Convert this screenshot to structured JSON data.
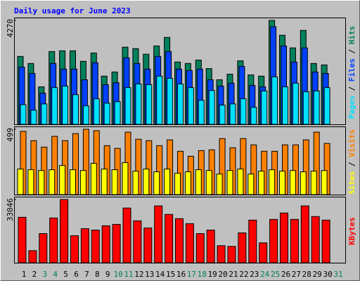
{
  "chart_data": [
    {
      "type": "bar",
      "title": "Daily usage for June 2023",
      "title_color": "#0000ff",
      "ylim": [
        0,
        4270
      ],
      "yticks": [
        4270
      ],
      "legend_separator": " / ",
      "series": [
        {
          "name": "Pages",
          "color": "#00e0ff",
          "values": [
            810,
            580,
            840,
            1510,
            1570,
            1220,
            760,
            1050,
            870,
            930,
            1510,
            1660,
            1630,
            1980,
            1890,
            1660,
            1510,
            990,
            1390,
            790,
            840,
            1050,
            700,
            1370,
            1950,
            1540,
            1690,
            1340,
            1370,
            1510,
            null
          ]
        },
        {
          "name": "Files",
          "color": "#0040ff",
          "values": [
            2350,
            2090,
            1280,
            2500,
            2270,
            2270,
            1830,
            2530,
            1630,
            1710,
            2730,
            2500,
            2270,
            2790,
            2990,
            2270,
            2210,
            2270,
            1830,
            1570,
            1690,
            2380,
            1600,
            1540,
            4010,
            3220,
            2560,
            3140,
            2150,
            2090,
            null
          ]
        },
        {
          "name": "Hits",
          "color": "#00805c",
          "values": [
            2790,
            2500,
            1540,
            2990,
            3020,
            3020,
            2590,
            2930,
            1980,
            2150,
            3170,
            3110,
            2880,
            3220,
            3570,
            2560,
            2500,
            2640,
            2290,
            1830,
            2060,
            2610,
            2030,
            1980,
            4270,
            3660,
            3140,
            3860,
            2500,
            2440,
            null
          ]
        }
      ]
    },
    {
      "type": "bar",
      "ylim": [
        0,
        499
      ],
      "yticks": [
        499
      ],
      "legend_separator": " / ",
      "series": [
        {
          "name": "Sites",
          "color": "#ffff00",
          "values": [
            195,
            190,
            184,
            190,
            222,
            190,
            184,
            239,
            195,
            190,
            244,
            179,
            195,
            174,
            195,
            163,
            174,
            190,
            184,
            157,
            184,
            195,
            157,
            179,
            190,
            179,
            184,
            174,
            179,
            184,
            null
          ]
        },
        {
          "name": "Visits",
          "color": "#ff8000",
          "values": [
            483,
            412,
            363,
            445,
            412,
            466,
            499,
            488,
            374,
            353,
            477,
            423,
            412,
            374,
            418,
            331,
            293,
            336,
            342,
            428,
            358,
            428,
            380,
            331,
            331,
            380,
            380,
            418,
            477,
            391,
            null
          ]
        }
      ]
    },
    {
      "type": "bar",
      "ylim": [
        0,
        33046
      ],
      "yticks": [
        33046
      ],
      "categories": [
        "1",
        "2",
        "3",
        "4",
        "5",
        "6",
        "7",
        "8",
        "9",
        "10",
        "11",
        "12",
        "13",
        "14",
        "15",
        "16",
        "17",
        "18",
        "19",
        "20",
        "21",
        "22",
        "23",
        "24",
        "25",
        "26",
        "27",
        "28",
        "29",
        "30",
        "31"
      ],
      "category_colors": [
        "#000000",
        "#000000",
        "#00805c",
        "#00805c",
        "#000000",
        "#000000",
        "#000000",
        "#000000",
        "#000000",
        "#00805c",
        "#00805c",
        "#000000",
        "#000000",
        "#000000",
        "#000000",
        "#000000",
        "#00805c",
        "#00805c",
        "#000000",
        "#000000",
        "#000000",
        "#000000",
        "#000000",
        "#00805c",
        "#00805c",
        "#000000",
        "#000000",
        "#000000",
        "#000000",
        "#000000",
        "#00805c"
      ],
      "series": [
        {
          "name": "KBytes",
          "color": "#ff0000",
          "values": [
            23760,
            6310,
            15220,
            23390,
            33046,
            14110,
            17820,
            17080,
            19310,
            20050,
            28590,
            21910,
            18190,
            29700,
            25250,
            23020,
            20420,
            15220,
            17080,
            8910,
            8540,
            15590,
            22280,
            10400,
            22650,
            25990,
            22650,
            29700,
            24130,
            22280,
            null
          ]
        }
      ]
    }
  ]
}
